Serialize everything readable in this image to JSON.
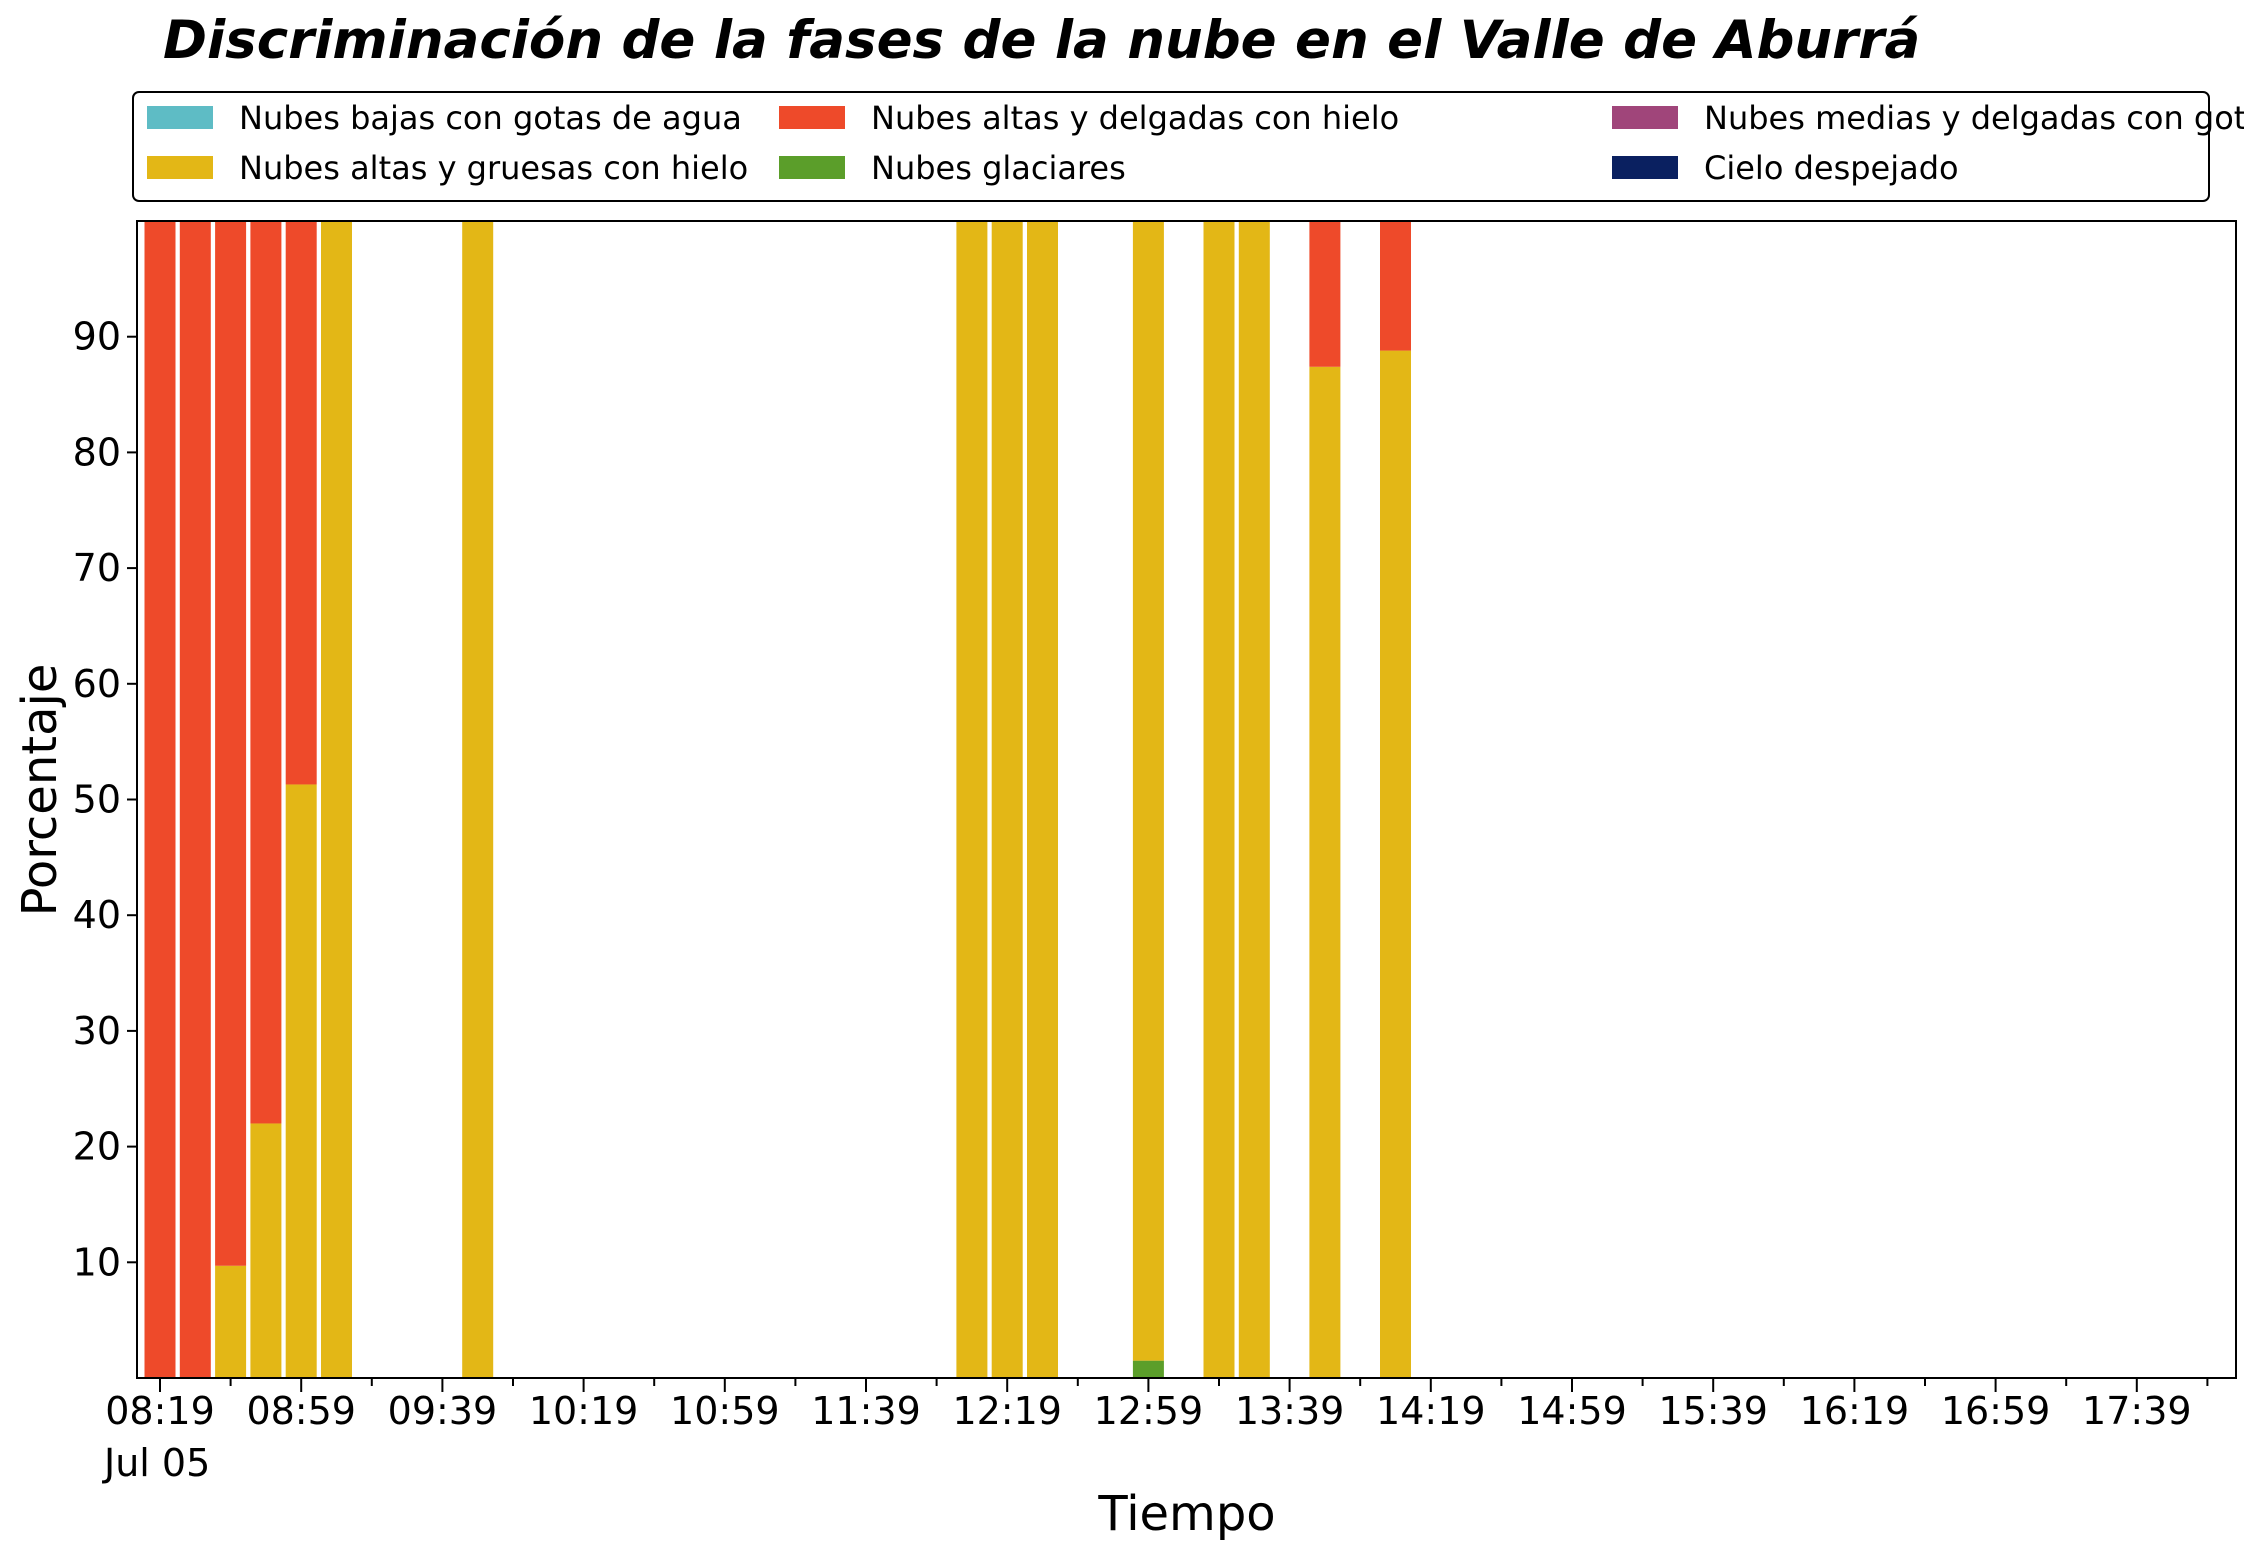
{
  "chart_data": {
    "type": "bar",
    "stacked": true,
    "title": "Discriminación de la fases de la nube en el Valle de Aburrá",
    "xlabel": "Tiempo",
    "ylabel": "Porcentaje",
    "date_label": "Jul 05",
    "ylim": [
      0,
      100
    ],
    "yticks": [
      10,
      20,
      30,
      40,
      50,
      60,
      70,
      80,
      90
    ],
    "xticks": [
      "08:19",
      "08:59",
      "09:39",
      "10:19",
      "10:59",
      "11:39",
      "12:19",
      "12:59",
      "13:39",
      "14:19",
      "14:59",
      "15:39",
      "16:19",
      "16:59",
      "17:39"
    ],
    "legend_position": "top",
    "legend": [
      {
        "name": "Nubes bajas con gotas de agua",
        "color": "#5ebcc5"
      },
      {
        "name": "Nubes altas y gruesas con hielo",
        "color": "#e3b716"
      },
      {
        "name": "Nubes altas y delgadas con hielo",
        "color": "#ee4a2a"
      },
      {
        "name": "Nubes glaciares",
        "color": "#5b9e2a"
      },
      {
        "name": "Nubes medias y delgadas con gotas de agua",
        "color": "#a0457a"
      },
      {
        "name": "Cielo despejado",
        "color": "#0a2060"
      }
    ],
    "x": [
      "08:19",
      "08:29",
      "08:39",
      "08:49",
      "08:59",
      "09:09",
      "09:49",
      "12:09",
      "12:19",
      "12:29",
      "12:59",
      "13:19",
      "13:29",
      "13:49",
      "14:09"
    ],
    "series": [
      {
        "name": "Nubes glaciares",
        "color": "#5b9e2a",
        "values": [
          0,
          0,
          0,
          0,
          0,
          0,
          0,
          0,
          0,
          0,
          1.5,
          0,
          0,
          0,
          0
        ]
      },
      {
        "name": "Nubes altas y gruesas con hielo",
        "color": "#e3b716",
        "values": [
          0,
          0,
          9.7,
          22,
          51.3,
          100,
          100,
          100,
          100,
          100,
          98.5,
          100,
          100,
          87.4,
          88.8
        ]
      },
      {
        "name": "Nubes altas y delgadas con hielo",
        "color": "#ee4a2a",
        "values": [
          100,
          100,
          90.3,
          78,
          48.7,
          0,
          0,
          0,
          0,
          0,
          0,
          0,
          0,
          12.6,
          11.2
        ]
      }
    ]
  }
}
